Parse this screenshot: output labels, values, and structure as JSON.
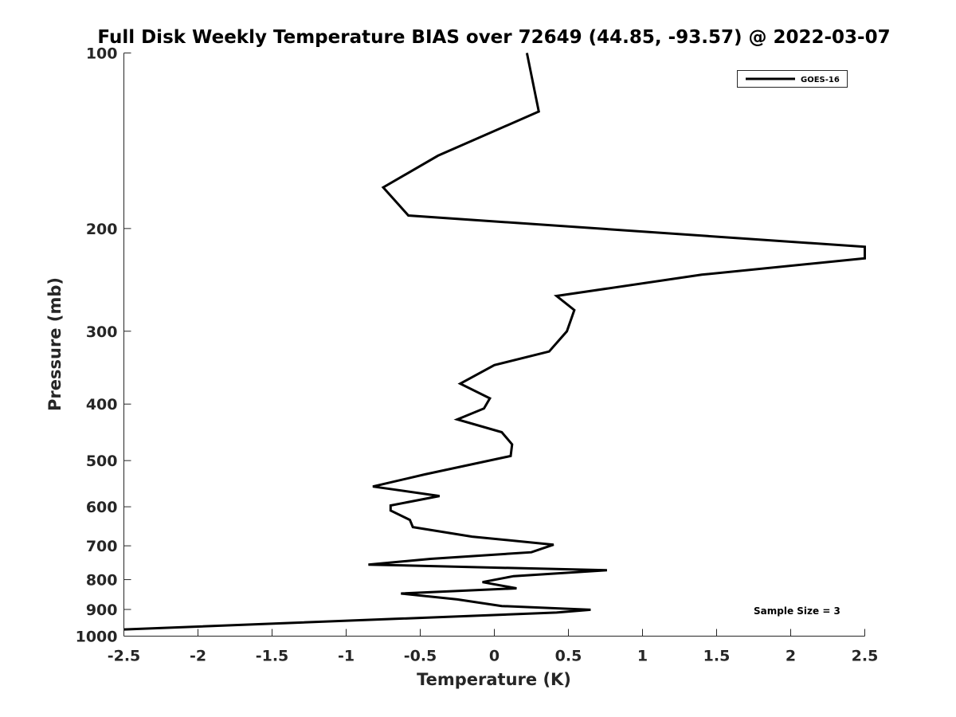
{
  "chart_data": {
    "type": "line",
    "title": "Full Disk Weekly Temperature BIAS over 72649 (44.85, -93.57) @ 2022-03-07",
    "xlabel": "Temperature (K)",
    "ylabel": "Pressure (mb)",
    "xlim": [
      -2.5,
      2.5
    ],
    "ylim": [
      100,
      1000
    ],
    "yscale": "log",
    "yreversed": true,
    "grid": false,
    "legend_position": "top-right",
    "xticks": [
      -2.5,
      -2,
      -1.5,
      -1,
      -0.5,
      0,
      0.5,
      1,
      1.5,
      2,
      2.5
    ],
    "xtick_labels": [
      "-2.5",
      "-2",
      "-1.5",
      "-1",
      "-0.5",
      "0",
      "0.5",
      "1",
      "1.5",
      "2",
      "2.5"
    ],
    "yticks": [
      100,
      200,
      300,
      400,
      500,
      600,
      700,
      800,
      900,
      1000
    ],
    "ytick_labels": [
      "100",
      "200",
      "300",
      "400",
      "500",
      "600",
      "700",
      "800",
      "900",
      "1000"
    ],
    "annotation": "Sample Size = 3",
    "series": [
      {
        "name": "GOES-16",
        "color": "#000000",
        "points": [
          [
            0.22,
            100
          ],
          [
            0.3,
            126
          ],
          [
            -0.38,
            150
          ],
          [
            -0.75,
            170
          ],
          [
            -0.58,
            190
          ],
          [
            2.5,
            215
          ],
          [
            2.5,
            225
          ],
          [
            1.4,
            240
          ],
          [
            0.42,
            261
          ],
          [
            0.54,
            276
          ],
          [
            0.49,
            300
          ],
          [
            0.37,
            325
          ],
          [
            0.0,
            343
          ],
          [
            -0.23,
            369
          ],
          [
            -0.03,
            391
          ],
          [
            -0.07,
            407
          ],
          [
            -0.25,
            425
          ],
          [
            0.05,
            447
          ],
          [
            0.12,
            469
          ],
          [
            0.11,
            491
          ],
          [
            -0.47,
            528
          ],
          [
            -0.82,
            554
          ],
          [
            -0.37,
            575
          ],
          [
            -0.7,
            597
          ],
          [
            -0.7,
            609
          ],
          [
            -0.57,
            632
          ],
          [
            -0.55,
            650
          ],
          [
            -0.15,
            675
          ],
          [
            0.4,
            697
          ],
          [
            0.25,
            718
          ],
          [
            -0.43,
            737
          ],
          [
            -0.85,
            754
          ],
          [
            0.76,
            771
          ],
          [
            0.13,
            789
          ],
          [
            -0.08,
            808
          ],
          [
            0.15,
            828
          ],
          [
            -0.63,
            845
          ],
          [
            -0.25,
            865
          ],
          [
            0.05,
            888
          ],
          [
            0.65,
            901
          ],
          [
            0.42,
            911
          ],
          [
            -2.5,
            974
          ]
        ]
      }
    ]
  }
}
